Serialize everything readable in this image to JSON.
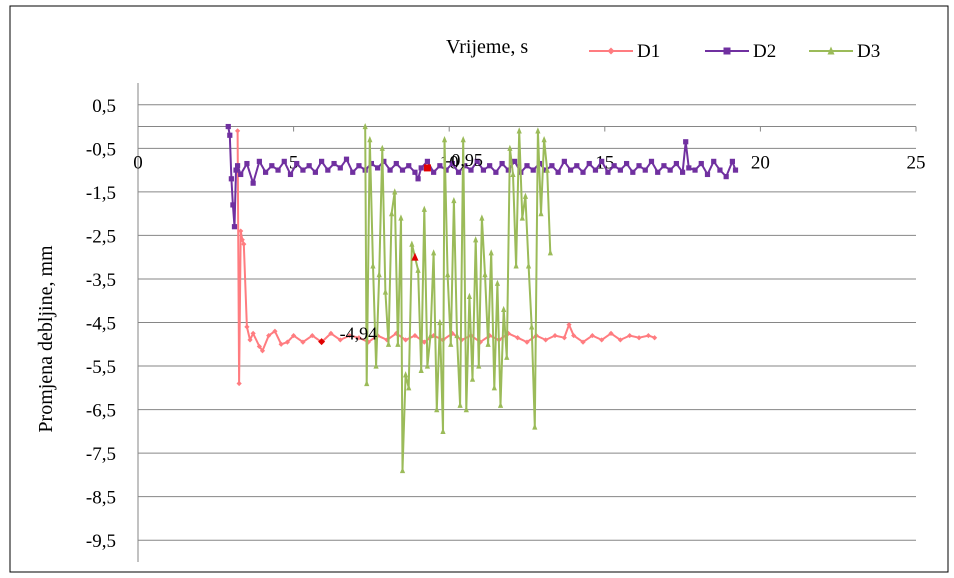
{
  "chart_data": {
    "type": "line",
    "xlabel": "Vrijeme, s",
    "ylabel": "Promjena debljine, mm",
    "xlim": [
      0,
      25
    ],
    "ylim": [
      -10,
      1
    ],
    "x_ticks": [
      0,
      5,
      10,
      15,
      20,
      25
    ],
    "x_tick_labels": [
      "0",
      "5",
      "10",
      "15",
      "20",
      "25"
    ],
    "y_ticks": [
      0.5,
      -0.5,
      -1.5,
      -2.5,
      -3.5,
      -4.5,
      -5.5,
      -6.5,
      -7.5,
      -8.5,
      -9.5
    ],
    "y_tick_labels": [
      "0,5",
      "-0,5",
      "-1,5",
      "-2,5",
      "-3,5",
      "-4,5",
      "-5,5",
      "-6,5",
      "-7,5",
      "-8,5",
      "-9,5"
    ],
    "grid": "horizontal",
    "legend_position": "top-right",
    "series": [
      {
        "name": "D1",
        "color": "#ff7c80",
        "marker": "diamond",
        "points": [
          [
            3.2,
            -0.1
          ],
          [
            3.25,
            -5.9
          ],
          [
            3.3,
            -2.4
          ],
          [
            3.35,
            -2.6
          ],
          [
            3.4,
            -2.7
          ],
          [
            3.5,
            -4.6
          ],
          [
            3.6,
            -4.9
          ],
          [
            3.7,
            -4.75
          ],
          [
            3.9,
            -5.05
          ],
          [
            4.0,
            -5.15
          ],
          [
            4.2,
            -4.8
          ],
          [
            4.4,
            -4.7
          ],
          [
            4.6,
            -5.0
          ],
          [
            4.8,
            -4.95
          ],
          [
            5.0,
            -4.8
          ],
          [
            5.3,
            -4.95
          ],
          [
            5.6,
            -4.8
          ],
          [
            5.9,
            -4.95
          ],
          [
            6.2,
            -4.75
          ],
          [
            6.5,
            -4.9
          ],
          [
            6.8,
            -4.8
          ],
          [
            7.1,
            -4.85
          ],
          [
            7.4,
            -4.95
          ],
          [
            7.7,
            -4.8
          ],
          [
            8.0,
            -4.9
          ],
          [
            8.3,
            -4.75
          ],
          [
            8.6,
            -4.9
          ],
          [
            8.9,
            -4.8
          ],
          [
            9.2,
            -4.95
          ],
          [
            9.5,
            -4.8
          ],
          [
            9.8,
            -4.9
          ],
          [
            10.1,
            -4.75
          ],
          [
            10.4,
            -4.9
          ],
          [
            10.7,
            -4.8
          ],
          [
            11.0,
            -4.95
          ],
          [
            11.3,
            -4.8
          ],
          [
            11.6,
            -4.9
          ],
          [
            11.9,
            -4.75
          ],
          [
            12.2,
            -4.85
          ],
          [
            12.5,
            -4.95
          ],
          [
            12.8,
            -4.8
          ],
          [
            13.1,
            -4.9
          ],
          [
            13.4,
            -4.8
          ],
          [
            13.7,
            -4.85
          ],
          [
            13.85,
            -4.55
          ],
          [
            14.0,
            -4.8
          ],
          [
            14.3,
            -4.95
          ],
          [
            14.6,
            -4.8
          ],
          [
            14.9,
            -4.9
          ],
          [
            15.2,
            -4.75
          ],
          [
            15.5,
            -4.9
          ],
          [
            15.8,
            -4.8
          ],
          [
            16.1,
            -4.85
          ],
          [
            16.4,
            -4.8
          ],
          [
            16.6,
            -4.85
          ]
        ],
        "highlight": {
          "x": 5.9,
          "y": -4.94,
          "label": "-4,94"
        }
      },
      {
        "name": "D2",
        "color": "#7030a0",
        "marker": "square",
        "points": [
          [
            2.9,
            0.0
          ],
          [
            2.95,
            -0.2
          ],
          [
            3.0,
            -1.2
          ],
          [
            3.05,
            -1.8
          ],
          [
            3.1,
            -2.3
          ],
          [
            3.15,
            -1.0
          ],
          [
            3.2,
            -0.9
          ],
          [
            3.3,
            -1.1
          ],
          [
            3.5,
            -0.85
          ],
          [
            3.7,
            -1.3
          ],
          [
            3.9,
            -0.8
          ],
          [
            4.1,
            -1.05
          ],
          [
            4.3,
            -0.9
          ],
          [
            4.5,
            -1.0
          ],
          [
            4.7,
            -0.8
          ],
          [
            4.9,
            -1.1
          ],
          [
            5.1,
            -0.85
          ],
          [
            5.3,
            -1.0
          ],
          [
            5.5,
            -0.9
          ],
          [
            5.7,
            -1.05
          ],
          [
            5.9,
            -0.8
          ],
          [
            6.1,
            -1.0
          ],
          [
            6.3,
            -0.85
          ],
          [
            6.5,
            -0.95
          ],
          [
            6.7,
            -0.75
          ],
          [
            6.9,
            -1.05
          ],
          [
            7.1,
            -0.9
          ],
          [
            7.3,
            -1.0
          ],
          [
            7.5,
            -0.85
          ],
          [
            7.7,
            -0.95
          ],
          [
            7.9,
            -0.8
          ],
          [
            8.1,
            -1.0
          ],
          [
            8.3,
            -0.85
          ],
          [
            8.5,
            -1.0
          ],
          [
            8.7,
            -0.9
          ],
          [
            8.9,
            -1.05
          ],
          [
            9.0,
            -1.2
          ],
          [
            9.1,
            -0.95
          ],
          [
            9.3,
            -0.8
          ],
          [
            9.5,
            -1.05
          ],
          [
            9.7,
            -0.9
          ],
          [
            9.9,
            -1.0
          ],
          [
            10.1,
            -0.85
          ],
          [
            10.3,
            -1.05
          ],
          [
            10.5,
            -0.9
          ],
          [
            10.7,
            -1.0
          ],
          [
            10.9,
            -0.8
          ],
          [
            11.1,
            -1.0
          ],
          [
            11.3,
            -0.9
          ],
          [
            11.5,
            -1.05
          ],
          [
            11.7,
            -0.85
          ],
          [
            11.9,
            -1.0
          ],
          [
            12.1,
            -0.8
          ],
          [
            12.3,
            -1.05
          ],
          [
            12.5,
            -0.9
          ],
          [
            12.7,
            -1.0
          ],
          [
            12.9,
            -0.85
          ],
          [
            13.1,
            -1.0
          ],
          [
            13.3,
            -0.9
          ],
          [
            13.5,
            -1.05
          ],
          [
            13.7,
            -0.8
          ],
          [
            13.9,
            -1.0
          ],
          [
            14.1,
            -0.9
          ],
          [
            14.3,
            -1.05
          ],
          [
            14.5,
            -0.85
          ],
          [
            14.7,
            -1.0
          ],
          [
            14.9,
            -0.8
          ],
          [
            15.1,
            -1.05
          ],
          [
            15.3,
            -0.9
          ],
          [
            15.5,
            -1.0
          ],
          [
            15.7,
            -0.85
          ],
          [
            15.9,
            -1.05
          ],
          [
            16.1,
            -0.9
          ],
          [
            16.3,
            -1.0
          ],
          [
            16.5,
            -0.8
          ],
          [
            16.7,
            -1.05
          ],
          [
            16.9,
            -0.9
          ],
          [
            17.1,
            -1.0
          ],
          [
            17.3,
            -0.85
          ],
          [
            17.5,
            -1.05
          ],
          [
            17.6,
            -0.35
          ],
          [
            17.7,
            -0.95
          ],
          [
            17.9,
            -1.0
          ],
          [
            18.1,
            -0.85
          ],
          [
            18.3,
            -1.1
          ],
          [
            18.5,
            -0.8
          ],
          [
            18.7,
            -1.0
          ],
          [
            18.9,
            -1.15
          ],
          [
            19.1,
            -0.8
          ],
          [
            19.2,
            -1.0
          ]
        ],
        "highlight": {
          "x": 9.3,
          "y": -0.95,
          "label": "-0,95"
        }
      },
      {
        "name": "D3",
        "color": "#9bbb59",
        "marker": "triangle",
        "points": [
          [
            7.3,
            0.0
          ],
          [
            7.35,
            -5.9
          ],
          [
            7.45,
            -0.3
          ],
          [
            7.55,
            -3.2
          ],
          [
            7.65,
            -5.5
          ],
          [
            7.75,
            -3.4
          ],
          [
            7.85,
            -0.5
          ],
          [
            7.95,
            -3.8
          ],
          [
            8.05,
            -5.0
          ],
          [
            8.15,
            -2.0
          ],
          [
            8.25,
            -1.5
          ],
          [
            8.35,
            -5.0
          ],
          [
            8.45,
            -2.1
          ],
          [
            8.5,
            -7.9
          ],
          [
            8.6,
            -5.7
          ],
          [
            8.7,
            -6.0
          ],
          [
            8.8,
            -2.7
          ],
          [
            8.9,
            -3.0
          ],
          [
            9.0,
            -3.3
          ],
          [
            9.1,
            -5.6
          ],
          [
            9.2,
            -1.9
          ],
          [
            9.3,
            -5.5
          ],
          [
            9.4,
            -4.8
          ],
          [
            9.5,
            -2.9
          ],
          [
            9.6,
            -6.5
          ],
          [
            9.7,
            -4.5
          ],
          [
            9.8,
            -7.0
          ],
          [
            9.85,
            -0.3
          ],
          [
            9.95,
            -3.4
          ],
          [
            10.05,
            -5.0
          ],
          [
            10.15,
            -1.7
          ],
          [
            10.25,
            -4.8
          ],
          [
            10.35,
            -6.4
          ],
          [
            10.45,
            -0.3
          ],
          [
            10.55,
            -6.5
          ],
          [
            10.65,
            -3.9
          ],
          [
            10.75,
            -5.8
          ],
          [
            10.85,
            -2.6
          ],
          [
            10.95,
            -5.5
          ],
          [
            11.05,
            -2.1
          ],
          [
            11.15,
            -3.4
          ],
          [
            11.25,
            -5.0
          ],
          [
            11.35,
            -2.9
          ],
          [
            11.45,
            -6.0
          ],
          [
            11.55,
            -3.6
          ],
          [
            11.65,
            -6.4
          ],
          [
            11.75,
            -4.2
          ],
          [
            11.85,
            -5.3
          ],
          [
            11.95,
            -0.5
          ],
          [
            12.05,
            -1.1
          ],
          [
            12.15,
            -3.2
          ],
          [
            12.25,
            -0.1
          ],
          [
            12.35,
            -2.1
          ],
          [
            12.45,
            -1.6
          ],
          [
            12.55,
            -3.2
          ],
          [
            12.65,
            -4.6
          ],
          [
            12.75,
            -6.9
          ],
          [
            12.85,
            -0.1
          ],
          [
            12.95,
            -2.0
          ],
          [
            13.05,
            -0.3
          ],
          [
            13.15,
            -1.0
          ],
          [
            13.25,
            -2.9
          ]
        ],
        "highlight": {
          "x": 8.9,
          "y": -3.0,
          "label": ""
        }
      }
    ]
  }
}
